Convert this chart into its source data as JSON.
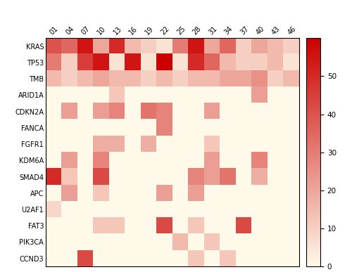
{
  "genes": [
    "KRAS",
    "TP53",
    "TMB",
    "ARID1A",
    "CDKN2A",
    "FANCA",
    "FGFR1",
    "KDM6A",
    "SMAD4",
    "APC",
    "U2AF1",
    "FAT3",
    "PIK3CA",
    "CCND3"
  ],
  "patients": [
    "01",
    "04",
    "07",
    "10",
    "13",
    "16",
    "19",
    "22",
    "25",
    "28",
    "31",
    "34",
    "37",
    "40",
    "43",
    "46"
  ],
  "data": [
    [
      40,
      35,
      55,
      20,
      50,
      15,
      10,
      5,
      30,
      55,
      20,
      35,
      10,
      20,
      15,
      10
    ],
    [
      30,
      10,
      45,
      55,
      5,
      55,
      5,
      60,
      5,
      50,
      35,
      15,
      10,
      10,
      15,
      5
    ],
    [
      15,
      10,
      15,
      20,
      15,
      15,
      10,
      15,
      10,
      15,
      15,
      20,
      20,
      25,
      10,
      15
    ],
    [
      0,
      0,
      0,
      0,
      12,
      0,
      0,
      0,
      0,
      0,
      0,
      0,
      0,
      22,
      0,
      0
    ],
    [
      0,
      22,
      0,
      22,
      28,
      0,
      32,
      28,
      0,
      0,
      22,
      0,
      0,
      0,
      0,
      0
    ],
    [
      0,
      0,
      0,
      0,
      0,
      0,
      0,
      28,
      0,
      0,
      0,
      0,
      0,
      0,
      0,
      0
    ],
    [
      0,
      0,
      0,
      18,
      18,
      0,
      18,
      0,
      0,
      0,
      12,
      0,
      0,
      0,
      0,
      0
    ],
    [
      0,
      22,
      0,
      28,
      0,
      0,
      0,
      0,
      0,
      0,
      22,
      0,
      0,
      28,
      0,
      0
    ],
    [
      50,
      12,
      0,
      42,
      0,
      0,
      0,
      0,
      0,
      28,
      22,
      32,
      0,
      18,
      0,
      0
    ],
    [
      0,
      22,
      0,
      12,
      0,
      0,
      0,
      22,
      0,
      22,
      0,
      0,
      0,
      0,
      0,
      0
    ],
    [
      8,
      0,
      0,
      0,
      0,
      0,
      0,
      0,
      0,
      0,
      0,
      0,
      0,
      0,
      0,
      0
    ],
    [
      0,
      0,
      0,
      12,
      12,
      0,
      0,
      42,
      0,
      12,
      0,
      0,
      42,
      0,
      0,
      0
    ],
    [
      0,
      0,
      0,
      0,
      0,
      0,
      0,
      0,
      15,
      0,
      12,
      0,
      0,
      0,
      0,
      0
    ],
    [
      0,
      0,
      42,
      0,
      0,
      0,
      0,
      0,
      0,
      12,
      0,
      12,
      0,
      0,
      0,
      0
    ]
  ],
  "vmin": 0,
  "vmax": 60,
  "cbar_ticks": [
    0,
    10,
    20,
    30,
    40,
    50
  ],
  "bg_color": "#FEF9E8",
  "max_color": "#CC0000",
  "figsize": [
    5.0,
    3.87
  ],
  "dpi": 100,
  "xlabel_fontsize": 7,
  "ylabel_fontsize": 7,
  "cbar_fontsize": 7.5
}
